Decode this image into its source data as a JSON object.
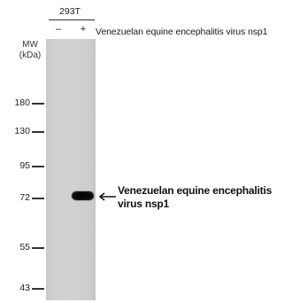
{
  "cell_line": "293T",
  "lanes": [
    "–",
    "+"
  ],
  "target_header": "Venezuelan equine encephalitis virus nsp1",
  "mw_unit_line1": "MW",
  "mw_unit_line2": "(kDa)",
  "markers": [
    "180",
    "130",
    "95",
    "72",
    "55",
    "43"
  ],
  "band_annotation_line1": "Venezuelan equine encephalitis",
  "band_annotation_line2": "virus nsp1"
}
